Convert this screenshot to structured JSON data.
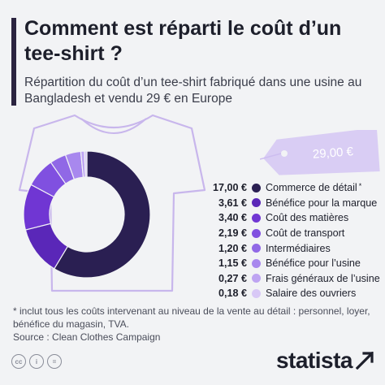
{
  "header": {
    "title": "Comment est réparti le coût d’un tee-shirt ?",
    "subtitle": "Répartition du coût d’un tee-shirt fabriqué dans une usine au Bangladesh et vendu 29 € en Europe"
  },
  "price_tag": {
    "label": "29,00 €"
  },
  "chart_data": {
    "type": "pie",
    "variant": "donut",
    "total": 29.0,
    "unit": "€",
    "categories": [
      "Commerce de détail",
      "Bénéfice pour la marque",
      "Coût des matières",
      "Coût de transport",
      "Intermédiaires",
      "Bénéfice pour l’usine",
      "Frais généraux de l’usine",
      "Salaire des ouvriers"
    ],
    "values": [
      17.0,
      3.61,
      3.4,
      2.19,
      1.2,
      1.15,
      0.27,
      0.18
    ],
    "value_labels": [
      "17,00 €",
      "3,61 €",
      "3,40 €",
      "2,19 €",
      "1,20 €",
      "1,15 €",
      "0,27 €",
      "0,18 €"
    ],
    "notes": [
      "*",
      "",
      "",
      "",
      "",
      "",
      "",
      ""
    ],
    "colors": [
      "#2a1f52",
      "#5a27b8",
      "#7036d3",
      "#8050e0",
      "#9068e6",
      "#a888ee",
      "#bea4f2",
      "#d8c8f6"
    ],
    "legend_placement": "right"
  },
  "footer": {
    "footnote": "* inclut tous les coûts intervenant au niveau de la vente au détail : personnel, loyer, bénéfice du magasin, TVA.",
    "source": "Source : Clean Clothes Campaign",
    "brand": "statista",
    "license_icons": [
      "cc",
      "i",
      "="
    ]
  }
}
